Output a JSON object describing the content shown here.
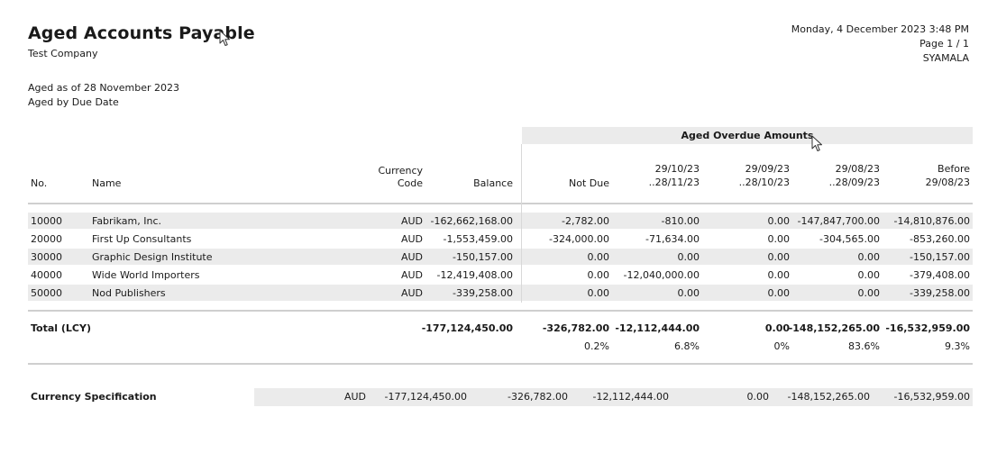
{
  "report": {
    "title": "Aged Accounts Payable",
    "company": "Test Company",
    "aged_as_of": "Aged as of 28 November 2023",
    "aged_by": "Aged by Due Date",
    "datetime": "Monday, 4 December 2023 3:48 PM",
    "page": "Page 1 / 1",
    "user": "SYAMALA"
  },
  "header": {
    "band_label": "Aged Overdue Amounts",
    "no": "No.",
    "name": "Name",
    "currency_1": "Currency",
    "currency_2": "Code",
    "balance": "Balance",
    "not_due": "Not Due",
    "b1_1": "29/10/23",
    "b1_2": "..28/11/23",
    "b2_1": "29/09/23",
    "b2_2": "..28/10/23",
    "b3_1": "29/08/23",
    "b3_2": "..28/09/23",
    "b4_1": "Before",
    "b4_2": "29/08/23"
  },
  "rows": [
    {
      "no": "10000",
      "name": "Fabrikam, Inc.",
      "currency": "AUD",
      "balance": "-162,662,168.00",
      "not_due": "-2,782.00",
      "b1": "-810.00",
      "b2": "0.00",
      "b3": "-147,847,700.00",
      "b4": "-14,810,876.00"
    },
    {
      "no": "20000",
      "name": "First Up Consultants",
      "currency": "AUD",
      "balance": "-1,553,459.00",
      "not_due": "-324,000.00",
      "b1": "-71,634.00",
      "b2": "0.00",
      "b3": "-304,565.00",
      "b4": "-853,260.00"
    },
    {
      "no": "30000",
      "name": "Graphic Design Institute",
      "currency": "AUD",
      "balance": "-150,157.00",
      "not_due": "0.00",
      "b1": "0.00",
      "b2": "0.00",
      "b3": "0.00",
      "b4": "-150,157.00"
    },
    {
      "no": "40000",
      "name": "Wide World Importers",
      "currency": "AUD",
      "balance": "-12,419,408.00",
      "not_due": "0.00",
      "b1": "-12,040,000.00",
      "b2": "0.00",
      "b3": "0.00",
      "b4": "-379,408.00"
    },
    {
      "no": "50000",
      "name": "Nod Publishers",
      "currency": "AUD",
      "balance": "-339,258.00",
      "not_due": "0.00",
      "b1": "0.00",
      "b2": "0.00",
      "b3": "0.00",
      "b4": "-339,258.00"
    }
  ],
  "total": {
    "label": "Total (LCY)",
    "balance": "-177,124,450.00",
    "not_due": "-326,782.00",
    "b1": "-12,112,444.00",
    "b2": "0.00",
    "b3": "-148,152,265.00",
    "b4": "-16,532,959.00",
    "pct_not_due": "0.2%",
    "pct_b1": "6.8%",
    "pct_b2": "0%",
    "pct_b3": "83.6%",
    "pct_b4": "9.3%"
  },
  "currency_spec": {
    "label": "Currency Specification",
    "currency": "AUD",
    "balance": "-177,124,450.00",
    "not_due": "-326,782.00",
    "b1": "-12,112,444.00",
    "b2": "0.00",
    "b3": "-148,152,265.00",
    "b4": "-16,532,959.00"
  }
}
